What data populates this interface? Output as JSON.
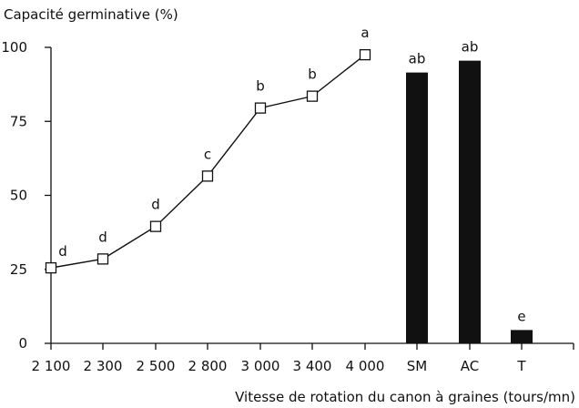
{
  "chart_data": {
    "type": "line+bar",
    "ylabel": "Capacité germinative (%)",
    "xlabel": "Vitesse de rotation du canon à graines (tours/mn)",
    "ylim": [
      0,
      100
    ],
    "yticks": [
      0,
      25,
      50,
      75,
      100
    ],
    "categories": [
      "2 100",
      "2 300",
      "2 500",
      "2 800",
      "3 000",
      "3 400",
      "4 000",
      "SM",
      "AC",
      "T"
    ],
    "line_series": {
      "marker": "open-square",
      "points": [
        {
          "x": "2 100",
          "y": 25.5,
          "label": "d"
        },
        {
          "x": "2 300",
          "y": 28.5,
          "label": "d"
        },
        {
          "x": "2 500",
          "y": 39.5,
          "label": "d"
        },
        {
          "x": "2 800",
          "y": 56.5,
          "label": "c"
        },
        {
          "x": "3 000",
          "y": 79.5,
          "label": "b"
        },
        {
          "x": "3 400",
          "y": 83.5,
          "label": "b"
        },
        {
          "x": "4 000",
          "y": 97.5,
          "label": "a"
        }
      ]
    },
    "bar_series": {
      "color": "#111111",
      "bars": [
        {
          "x": "SM",
          "y": 91.5,
          "label": "ab"
        },
        {
          "x": "AC",
          "y": 95.5,
          "label": "ab"
        },
        {
          "x": "T",
          "y": 4.5,
          "label": "e"
        }
      ]
    },
    "grid": false,
    "legend": "none"
  }
}
